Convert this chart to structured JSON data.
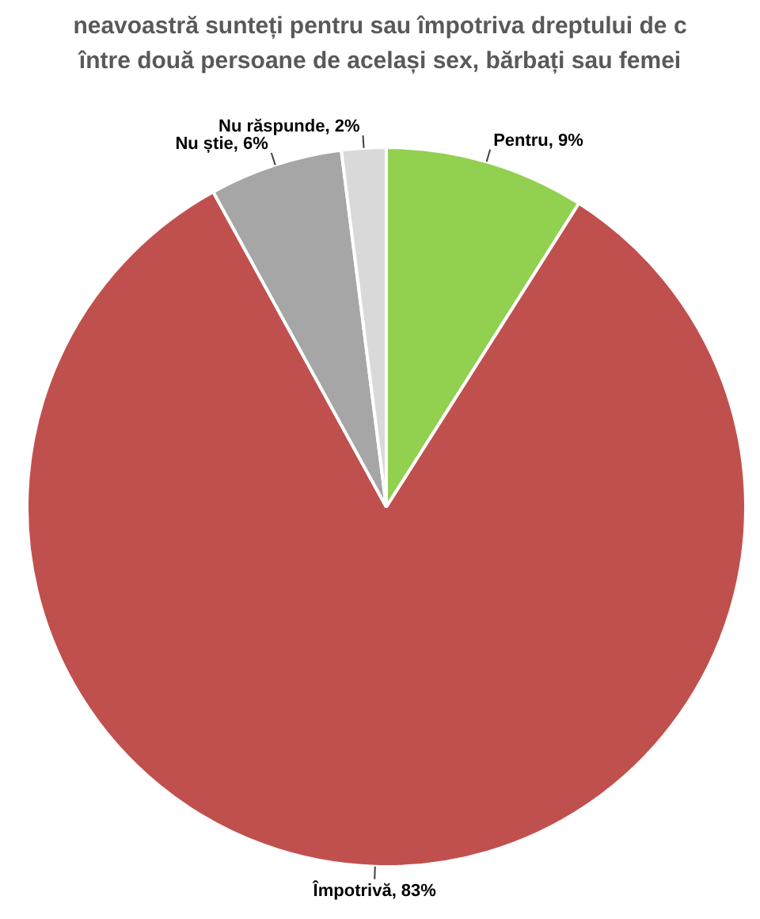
{
  "chart_data": {
    "type": "pie",
    "title": "neavoastră sunteți pentru sau împotriva dreptului de c\nîntre două persoane de același sex, bărbați sau femei",
    "categories": [
      "Pentru",
      "Împotrivă",
      "Nu știe",
      "Nu răspunde"
    ],
    "values": [
      9,
      83,
      6,
      2
    ],
    "value_labels": [
      "9%",
      "83%",
      "6%",
      "2%"
    ],
    "colors": [
      "#92d050",
      "#c0504d",
      "#a6a6a6",
      "#d9d9d9"
    ],
    "legend": false
  }
}
